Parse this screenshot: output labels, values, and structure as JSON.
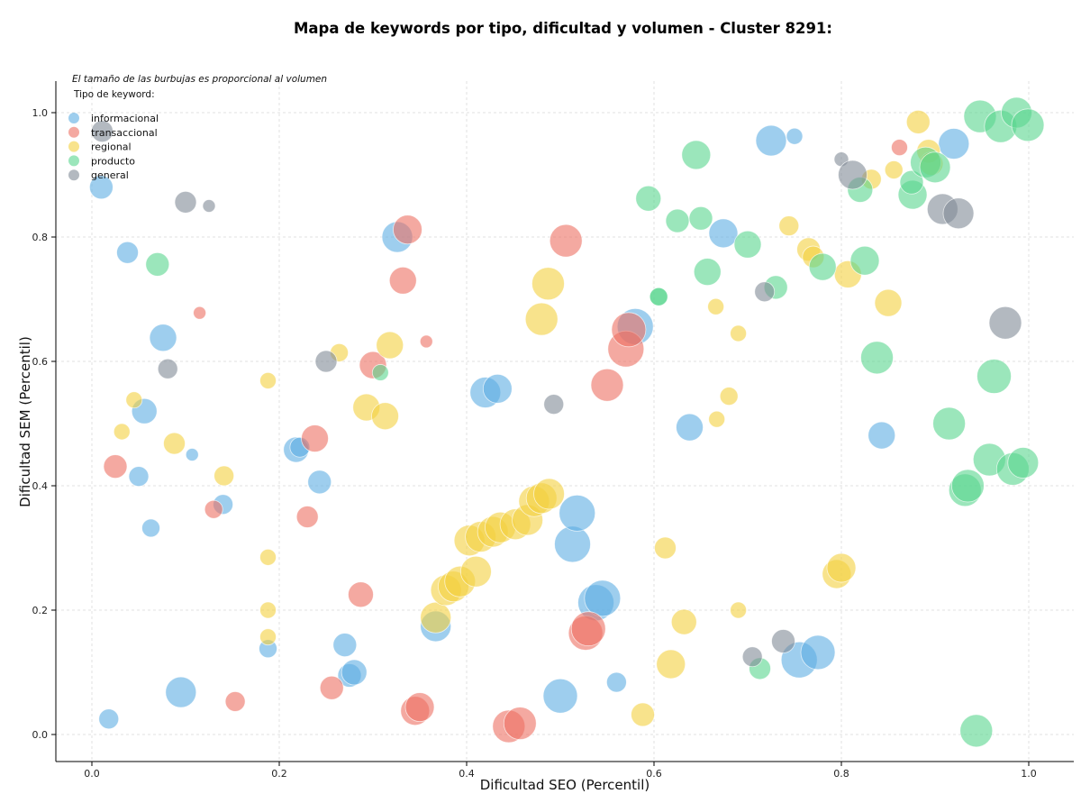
{
  "chart_data": {
    "type": "scatter",
    "title": "Mapa de keywords por tipo, dificultad y volumen - Cluster 8291:",
    "xlabel": "Dificultad SEO (Percentil)",
    "ylabel": "Dificultad SEM (Percentil)",
    "xlim": [
      -0.04,
      1.05
    ],
    "ylim": [
      -0.045,
      1.05
    ],
    "xticks": [
      "0.0",
      "0.2",
      "0.4",
      "0.6",
      "0.8",
      "1.0"
    ],
    "yticks": [
      "0.0",
      "0.2",
      "0.4",
      "0.6",
      "0.8",
      "1.0"
    ],
    "grid": true,
    "legend_position": "top-left",
    "note": "El tamaño de las burbujas es proporcional al volumen",
    "legend_title": "Tipo de keyword:",
    "series": [
      {
        "name": "informacional",
        "color": "#5DADE2",
        "points": [
          [
            0.01,
            0.88,
            13
          ],
          [
            0.038,
            0.775,
            12
          ],
          [
            0.018,
            0.025,
            11
          ],
          [
            0.056,
            0.52,
            14
          ],
          [
            0.05,
            0.415,
            11
          ],
          [
            0.063,
            0.332,
            10
          ],
          [
            0.076,
            0.638,
            15
          ],
          [
            0.095,
            0.068,
            17
          ],
          [
            0.107,
            0.45,
            7
          ],
          [
            0.14,
            0.37,
            11
          ],
          [
            0.188,
            0.138,
            10
          ],
          [
            0.218,
            0.458,
            14
          ],
          [
            0.222,
            0.462,
            11
          ],
          [
            0.243,
            0.406,
            13
          ],
          [
            0.27,
            0.144,
            13
          ],
          [
            0.275,
            0.095,
            13
          ],
          [
            0.28,
            0.1,
            14
          ],
          [
            0.326,
            0.8,
            17
          ],
          [
            0.367,
            0.174,
            17
          ],
          [
            0.42,
            0.55,
            17
          ],
          [
            0.433,
            0.556,
            16
          ],
          [
            0.5,
            0.062,
            19
          ],
          [
            0.513,
            0.306,
            20
          ],
          [
            0.518,
            0.356,
            20
          ],
          [
            0.538,
            0.212,
            20
          ],
          [
            0.545,
            0.219,
            20
          ],
          [
            0.56,
            0.084,
            11
          ],
          [
            0.58,
            0.656,
            20
          ],
          [
            0.638,
            0.494,
            15
          ],
          [
            0.674,
            0.806,
            16
          ],
          [
            0.725,
            0.955,
            17
          ],
          [
            0.75,
            0.962,
            9
          ],
          [
            0.755,
            0.12,
            20
          ],
          [
            0.775,
            0.132,
            19
          ],
          [
            0.843,
            0.481,
            15
          ],
          [
            0.92,
            0.95,
            17
          ]
        ]
      },
      {
        "name": "transaccional",
        "color": "#EC7063",
        "points": [
          [
            0.025,
            0.431,
            13
          ],
          [
            0.115,
            0.678,
            7
          ],
          [
            0.13,
            0.362,
            10
          ],
          [
            0.153,
            0.053,
            11
          ],
          [
            0.23,
            0.35,
            12
          ],
          [
            0.238,
            0.476,
            15
          ],
          [
            0.256,
            0.075,
            13
          ],
          [
            0.287,
            0.225,
            14
          ],
          [
            0.3,
            0.594,
            15
          ],
          [
            0.332,
            0.73,
            15
          ],
          [
            0.337,
            0.812,
            16
          ],
          [
            0.345,
            0.038,
            16
          ],
          [
            0.35,
            0.044,
            16
          ],
          [
            0.357,
            0.632,
            7
          ],
          [
            0.445,
            0.013,
            18
          ],
          [
            0.457,
            0.018,
            18
          ],
          [
            0.506,
            0.794,
            18
          ],
          [
            0.527,
            0.163,
            19
          ],
          [
            0.53,
            0.17,
            19
          ],
          [
            0.55,
            0.562,
            18
          ],
          [
            0.57,
            0.62,
            20
          ],
          [
            0.573,
            0.651,
            19
          ],
          [
            0.862,
            0.944,
            9
          ]
        ]
      },
      {
        "name": "regional",
        "color": "#F4D03F",
        "points": [
          [
            0.032,
            0.487,
            9
          ],
          [
            0.045,
            0.538,
            9
          ],
          [
            0.088,
            0.468,
            12
          ],
          [
            0.141,
            0.416,
            11
          ],
          [
            0.188,
            0.569,
            9
          ],
          [
            0.188,
            0.285,
            9
          ],
          [
            0.188,
            0.2,
            9
          ],
          [
            0.188,
            0.157,
            9
          ],
          [
            0.264,
            0.614,
            10
          ],
          [
            0.293,
            0.526,
            15
          ],
          [
            0.313,
            0.512,
            15
          ],
          [
            0.318,
            0.626,
            15
          ],
          [
            0.367,
            0.188,
            17
          ],
          [
            0.378,
            0.232,
            17
          ],
          [
            0.386,
            0.238,
            17
          ],
          [
            0.393,
            0.246,
            17
          ],
          [
            0.41,
            0.262,
            17
          ],
          [
            0.403,
            0.312,
            17
          ],
          [
            0.415,
            0.318,
            17
          ],
          [
            0.428,
            0.326,
            17
          ],
          [
            0.436,
            0.333,
            17
          ],
          [
            0.452,
            0.338,
            17
          ],
          [
            0.465,
            0.345,
            17
          ],
          [
            0.472,
            0.375,
            17
          ],
          [
            0.48,
            0.38,
            17
          ],
          [
            0.488,
            0.387,
            17
          ],
          [
            0.48,
            0.668,
            18
          ],
          [
            0.487,
            0.725,
            18
          ],
          [
            0.588,
            0.032,
            13
          ],
          [
            0.612,
            0.3,
            12
          ],
          [
            0.618,
            0.113,
            16
          ],
          [
            0.632,
            0.181,
            14
          ],
          [
            0.666,
            0.688,
            9
          ],
          [
            0.667,
            0.507,
            9
          ],
          [
            0.68,
            0.544,
            10
          ],
          [
            0.69,
            0.645,
            9
          ],
          [
            0.69,
            0.2,
            9
          ],
          [
            0.744,
            0.818,
            11
          ],
          [
            0.765,
            0.78,
            13
          ],
          [
            0.77,
            0.768,
            12
          ],
          [
            0.795,
            0.258,
            16
          ],
          [
            0.8,
            0.268,
            16
          ],
          [
            0.807,
            0.74,
            15
          ],
          [
            0.832,
            0.893,
            11
          ],
          [
            0.85,
            0.694,
            15
          ],
          [
            0.856,
            0.908,
            10
          ],
          [
            0.882,
            0.985,
            13
          ],
          [
            0.893,
            0.938,
            13
          ],
          [
            0.896,
            0.918,
            13
          ]
        ]
      },
      {
        "name": "producto",
        "color": "#58D68D",
        "points": [
          [
            0.07,
            0.756,
            13
          ],
          [
            0.308,
            0.582,
            9
          ],
          [
            0.594,
            0.862,
            14
          ],
          [
            0.605,
            0.704,
            10
          ],
          [
            0.605,
            0.704,
            10
          ],
          [
            0.625,
            0.826,
            13
          ],
          [
            0.645,
            0.932,
            16
          ],
          [
            0.65,
            0.83,
            13
          ],
          [
            0.657,
            0.744,
            15
          ],
          [
            0.7,
            0.788,
            15
          ],
          [
            0.713,
            0.106,
            12
          ],
          [
            0.73,
            0.719,
            13
          ],
          [
            0.78,
            0.752,
            15
          ],
          [
            0.82,
            0.876,
            14
          ],
          [
            0.825,
            0.762,
            16
          ],
          [
            0.838,
            0.606,
            18
          ],
          [
            0.876,
            0.868,
            16
          ],
          [
            0.875,
            0.888,
            13
          ],
          [
            0.89,
            0.92,
            17
          ],
          [
            0.9,
            0.912,
            17
          ],
          [
            0.915,
            0.5,
            18
          ],
          [
            0.932,
            0.393,
            18
          ],
          [
            0.935,
            0.4,
            18
          ],
          [
            0.944,
            0.006,
            18
          ],
          [
            0.948,
            0.994,
            18
          ],
          [
            0.958,
            0.442,
            18
          ],
          [
            0.963,
            0.576,
            19
          ],
          [
            0.97,
            0.978,
            18
          ],
          [
            0.983,
            0.427,
            18
          ],
          [
            0.987,
            1.0,
            17
          ],
          [
            0.994,
            0.437,
            17
          ],
          [
            0.999,
            0.98,
            18
          ]
        ]
      },
      {
        "name": "general",
        "color": "#808B96",
        "points": [
          [
            0.011,
            0.97,
            12
          ],
          [
            0.081,
            0.588,
            11
          ],
          [
            0.1,
            0.856,
            12
          ],
          [
            0.125,
            0.85,
            7
          ],
          [
            0.25,
            0.6,
            12
          ],
          [
            0.493,
            0.531,
            11
          ],
          [
            0.705,
            0.125,
            11
          ],
          [
            0.718,
            0.712,
            11
          ],
          [
            0.738,
            0.15,
            13
          ],
          [
            0.8,
            0.925,
            8
          ],
          [
            0.812,
            0.9,
            16
          ],
          [
            0.908,
            0.845,
            17
          ],
          [
            0.925,
            0.838,
            17
          ],
          [
            0.975,
            0.662,
            18
          ]
        ]
      }
    ]
  }
}
